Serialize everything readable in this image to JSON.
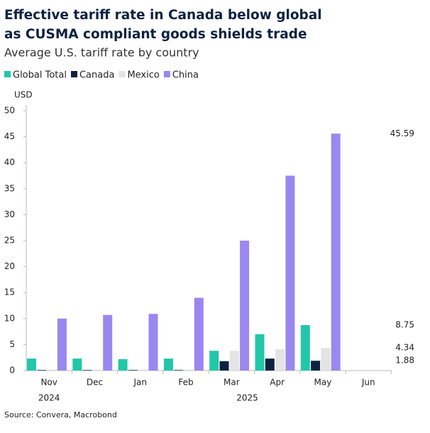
{
  "chart_data": {
    "type": "bar",
    "title": "Effective tariff rate in Canada below global as CUSMA compliant goods shields trade",
    "subtitle": "Average U.S. tariff rate by country",
    "y_label": "USD",
    "source": "Source: Convera, Macrobond",
    "categories": [
      "Nov",
      "Dec",
      "Jan",
      "Feb",
      "Mar",
      "Apr",
      "May",
      "Jun"
    ],
    "year_labels": [
      "2024",
      null,
      null,
      null,
      null,
      "2025",
      null,
      null
    ],
    "series": [
      {
        "name": "Global Total",
        "color": "#21c7a8",
        "values": [
          2.3,
          2.3,
          2.2,
          2.3,
          3.8,
          7.0,
          8.75,
          null
        ],
        "value_labels": [
          null,
          null,
          null,
          null,
          null,
          null,
          "8.75",
          null
        ]
      },
      {
        "name": "Canada",
        "color": "#0d2240",
        "values": [
          0.1,
          0.1,
          0.1,
          0.1,
          1.8,
          2.3,
          1.88,
          null
        ],
        "value_labels": [
          null,
          null,
          null,
          null,
          null,
          null,
          "1.88",
          null
        ]
      },
      {
        "name": "Mexico",
        "color": "#e4e4e4",
        "values": [
          0.2,
          0.2,
          0.2,
          0.2,
          3.8,
          4.1,
          4.34,
          null
        ],
        "value_labels": [
          null,
          null,
          null,
          null,
          null,
          null,
          "4.34",
          null
        ]
      },
      {
        "name": "China",
        "color": "#9b87f0",
        "values": [
          10.0,
          10.7,
          10.9,
          14.0,
          25.0,
          37.5,
          45.59,
          null
        ],
        "value_labels": [
          null,
          null,
          null,
          null,
          null,
          null,
          "45.59",
          null
        ]
      }
    ],
    "ylim": [
      0,
      50
    ],
    "yticks": [
      0,
      5,
      10,
      15,
      20,
      25,
      30,
      35,
      40,
      45,
      50
    ],
    "grid": false
  }
}
